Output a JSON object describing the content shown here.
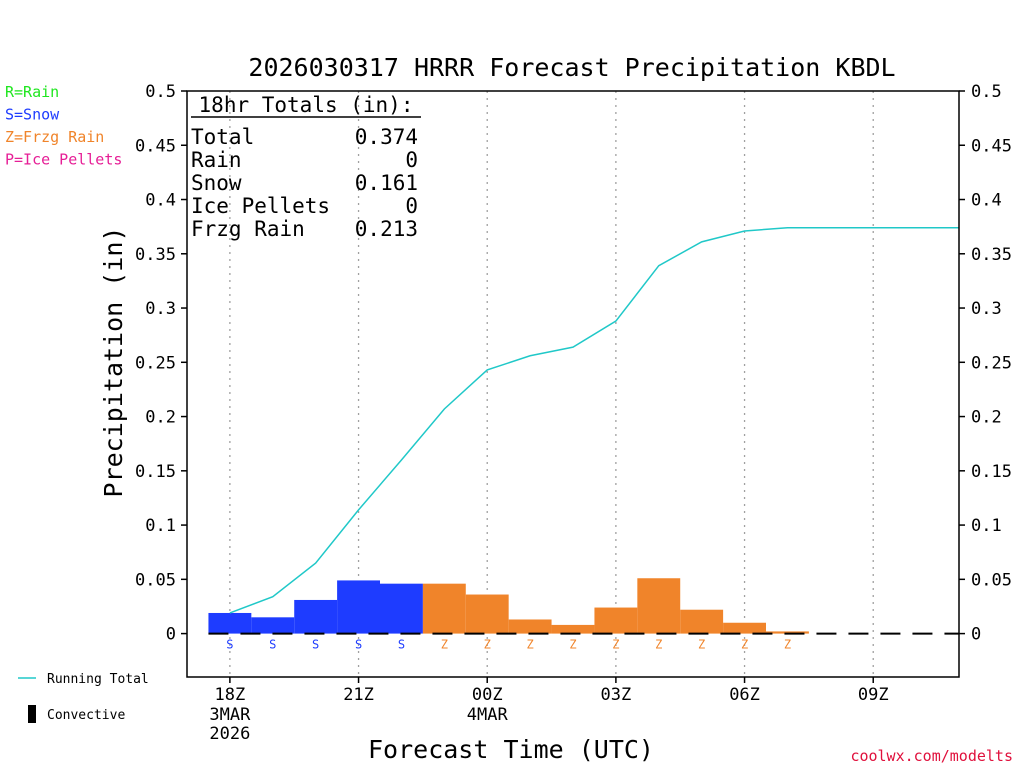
{
  "chart_data": {
    "type": "bar",
    "title": "2026030317 HRRR Forecast Precipitation KBDL",
    "xlabel": "Forecast Time (UTC)",
    "ylabel": "Precipitation (in)",
    "ylim": [
      -0.04,
      0.5
    ],
    "y_ticks": [
      0,
      0.05,
      0.1,
      0.15,
      0.2,
      0.25,
      0.3,
      0.35,
      0.4,
      0.45,
      0.5
    ],
    "y_tick_labels": [
      "0",
      "0.05",
      "0.1",
      "0.15",
      "0.2",
      "0.25",
      "0.3",
      "0.35",
      "0.4",
      "0.45",
      "0.5"
    ],
    "xlim": [
      17.0,
      35.0
    ],
    "x_ticks": [
      {
        "hour": 18,
        "label": "18Z",
        "date": "3MAR",
        "year": "2026"
      },
      {
        "hour": 21,
        "label": "21Z",
        "date": "",
        "year": ""
      },
      {
        "hour": 24,
        "label": "00Z",
        "date": "4MAR",
        "year": ""
      },
      {
        "hour": 27,
        "label": "03Z",
        "date": "",
        "year": ""
      },
      {
        "hour": 30,
        "label": "06Z",
        "date": "",
        "year": ""
      },
      {
        "hour": 33,
        "label": "09Z",
        "date": "",
        "year": ""
      }
    ],
    "grid": "vertical dotted",
    "hourly": [
      {
        "hour": 18,
        "value": 0.019,
        "type": "S"
      },
      {
        "hour": 19,
        "value": 0.015,
        "type": "S"
      },
      {
        "hour": 20,
        "value": 0.031,
        "type": "S"
      },
      {
        "hour": 21,
        "value": 0.049,
        "type": "S"
      },
      {
        "hour": 22,
        "value": 0.046,
        "type": "S"
      },
      {
        "hour": 23,
        "value": 0.046,
        "type": "Z"
      },
      {
        "hour": 24,
        "value": 0.036,
        "type": "Z"
      },
      {
        "hour": 25,
        "value": 0.013,
        "type": "Z"
      },
      {
        "hour": 26,
        "value": 0.008,
        "type": "Z"
      },
      {
        "hour": 27,
        "value": 0.024,
        "type": "Z"
      },
      {
        "hour": 28,
        "value": 0.051,
        "type": "Z"
      },
      {
        "hour": 29,
        "value": 0.022,
        "type": "Z"
      },
      {
        "hour": 30,
        "value": 0.01,
        "type": "Z"
      },
      {
        "hour": 31,
        "value": 0.002,
        "type": "Z"
      },
      {
        "hour": 32,
        "value": 0.0,
        "type": ""
      },
      {
        "hour": 33,
        "value": 0.0,
        "type": ""
      },
      {
        "hour": 34,
        "value": 0.0,
        "type": ""
      }
    ],
    "running_total": {
      "name": "Running Total",
      "x": [
        18,
        19,
        20,
        21,
        22,
        23,
        24,
        25,
        26,
        27,
        28,
        29,
        30,
        31,
        32,
        33,
        34,
        35
      ],
      "y": [
        0.019,
        0.034,
        0.065,
        0.114,
        0.16,
        0.207,
        0.243,
        0.256,
        0.264,
        0.288,
        0.339,
        0.361,
        0.371,
        0.374,
        0.374,
        0.374,
        0.374,
        0.374
      ]
    },
    "colors": {
      "snow": "#1e3cff",
      "frzg_rain": "#f0842a",
      "rain": "#1ee61e",
      "ice_pellets": "#e61e96",
      "running_total": "#20c8c8"
    },
    "type_legend": [
      {
        "label": "R=Rain",
        "color": "#1ee61e"
      },
      {
        "label": "S=Snow",
        "color": "#1e3cff"
      },
      {
        "label": "Z=Frzg Rain",
        "color": "#f0842a"
      },
      {
        "label": "P=Ice Pellets",
        "color": "#e61e96"
      }
    ],
    "series_legend": [
      {
        "label": "Running Total",
        "kind": "line"
      },
      {
        "label": "Convective",
        "kind": "bar"
      }
    ],
    "totals_box": {
      "title": "18hr Totals (in):",
      "rows": [
        {
          "label": "Total",
          "value": "0.374"
        },
        {
          "label": "Rain",
          "value": "0"
        },
        {
          "label": "Snow",
          "value": "0.161"
        },
        {
          "label": "Ice Pellets",
          "value": "0"
        },
        {
          "label": "Frzg Rain",
          "value": "0.213"
        }
      ]
    },
    "credit": "coolwx.com/modelts"
  }
}
